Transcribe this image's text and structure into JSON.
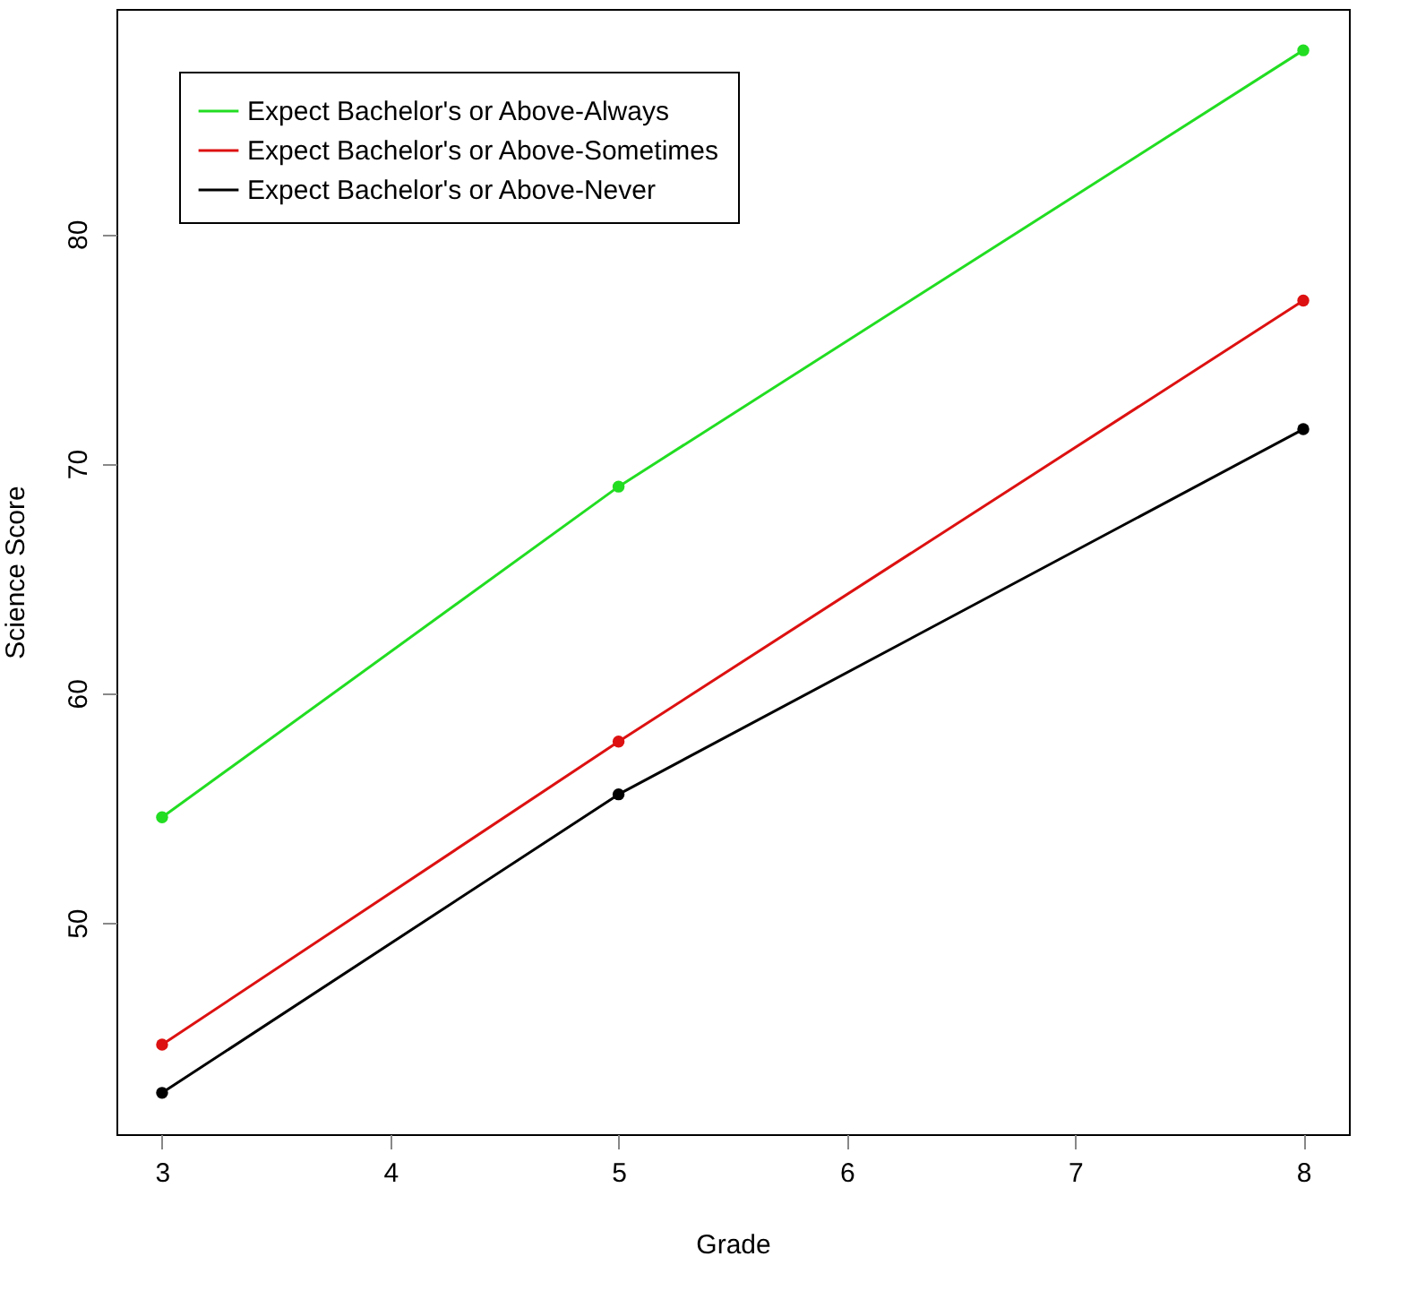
{
  "chart_data": {
    "type": "line",
    "xlabel": "Grade",
    "ylabel": "Science Score",
    "x": [
      3,
      5,
      8
    ],
    "series": [
      {
        "name": "Expect Bachelor's or Above-Always",
        "color": "#22dd22",
        "values": [
          54.6,
          69.0,
          88.0
        ]
      },
      {
        "name": "Expect Bachelor's or Above-Sometimes",
        "color": "#dd1111",
        "values": [
          44.7,
          57.9,
          77.1
        ]
      },
      {
        "name": "Expect Bachelor's or Above-Never",
        "color": "#000000",
        "values": [
          42.6,
          55.6,
          71.5
        ]
      }
    ],
    "xlim": [
      2.8,
      8.2
    ],
    "xticks": [
      3,
      4,
      5,
      6,
      7,
      8
    ],
    "ylim": [
      40.8,
      89.8
    ],
    "yticks": [
      50,
      60,
      70,
      80
    ],
    "grid": false,
    "legend": "top left",
    "marker": "circle",
    "line_style": "solid"
  }
}
